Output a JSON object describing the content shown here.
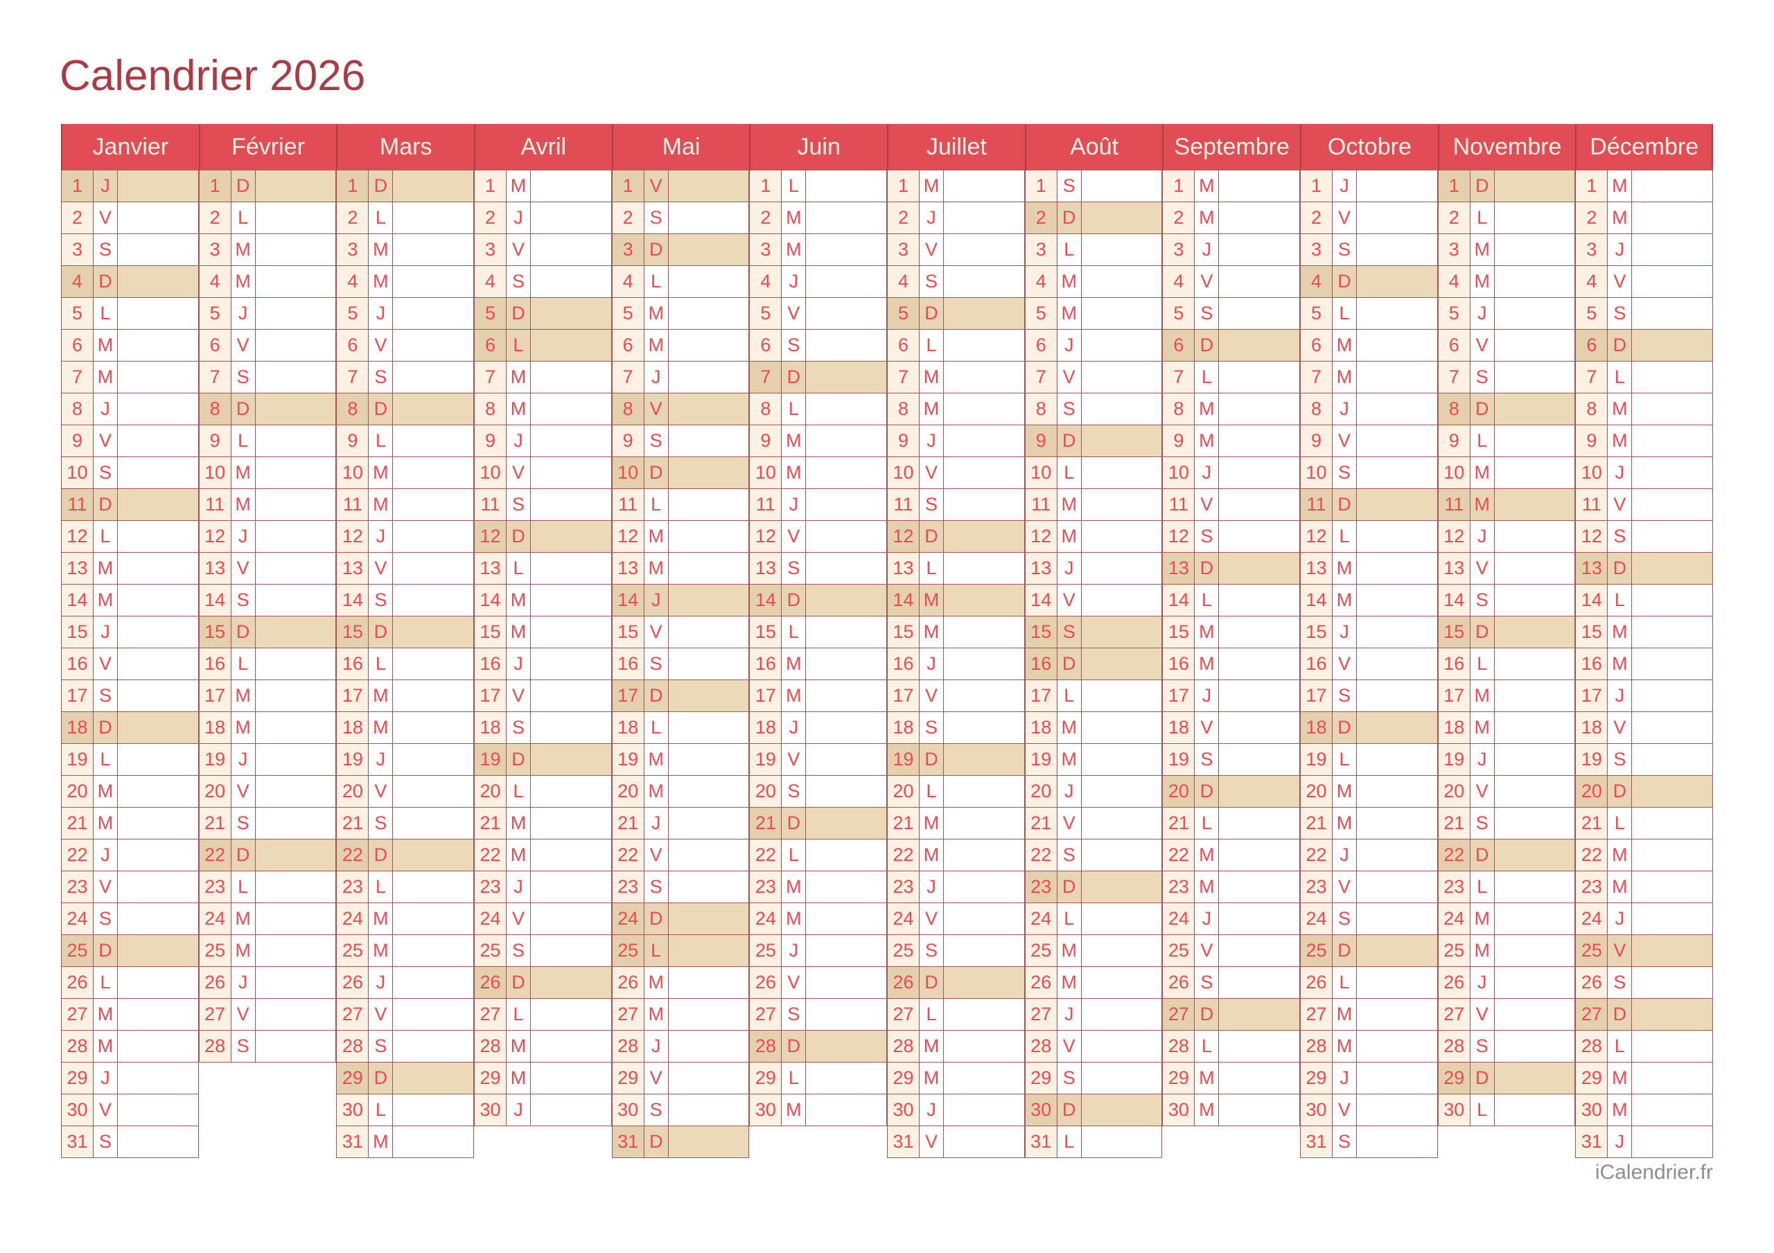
{
  "page": {
    "title": "Calendrier 2026",
    "footer": "iCalendrier.fr"
  },
  "colors": {
    "title_text": "#ab3a45",
    "header_bg": "#e24c55",
    "header_text": "#fdf3e9",
    "header_divider": "#b23a43",
    "day_text": "#ee4950",
    "cell_border": "#a15458",
    "number_cell_bg": "#fcf1e2",
    "cell_bg": "#ffffff",
    "holiday_number_bg": "#e5d0ae",
    "holiday_letter_bg": "#e8d5b5",
    "holiday_cell_bg": "#ebd9b8",
    "footer_text": "#8e8e8e"
  },
  "months": [
    {
      "name": "Janvier",
      "days": 31,
      "letters": "JVSDLMMJVSDLMMJVSDLMMJVSDLMMJVS",
      "highlighted": [
        1,
        4,
        11,
        18,
        25
      ]
    },
    {
      "name": "Février",
      "days": 28,
      "letters": "DLMMJVSDLMMJVSDLMMJVSDLMMJVS",
      "highlighted": [
        1,
        8,
        15,
        22
      ]
    },
    {
      "name": "Mars",
      "days": 31,
      "letters": "DLMMJVSDLMMJVSDLMMJVSDLMMJVSDLM",
      "highlighted": [
        1,
        8,
        15,
        22,
        29
      ]
    },
    {
      "name": "Avril",
      "days": 30,
      "letters": "MJVSDLMMJVSDLMMJVSDLMMJVSDLMMJ",
      "highlighted": [
        5,
        6,
        12,
        19,
        26
      ]
    },
    {
      "name": "Mai",
      "days": 31,
      "letters": "VSDLMMJVSDLMMJVSDLMMJVSDLMMJVSD",
      "highlighted": [
        1,
        3,
        8,
        10,
        14,
        17,
        24,
        25,
        31
      ]
    },
    {
      "name": "Juin",
      "days": 30,
      "letters": "LMMJVSDLMMJVSDLMMJVSDLMMJVSDLM",
      "highlighted": [
        7,
        14,
        21,
        28
      ]
    },
    {
      "name": "Juillet",
      "days": 31,
      "letters": "MJVSDLMMJVSDLMMJVSDLMMJVSDLMMJV",
      "highlighted": [
        5,
        12,
        14,
        19,
        26
      ]
    },
    {
      "name": "Août",
      "days": 31,
      "letters": "SDLMMJVSDLMMJVSDLMMJVSDLMMJVSDL",
      "highlighted": [
        2,
        9,
        15,
        16,
        23,
        30
      ]
    },
    {
      "name": "Septembre",
      "days": 30,
      "letters": "MMJVSDLMMJVSDLMMJVSDLMMJVSDLMM",
      "highlighted": [
        6,
        13,
        20,
        27
      ]
    },
    {
      "name": "Octobre",
      "days": 31,
      "letters": "JVSDLMMJVSDLMMJVSDLMMJVSDLMMJVS",
      "highlighted": [
        4,
        11,
        18,
        25
      ]
    },
    {
      "name": "Novembre",
      "days": 30,
      "letters": "DLMMJVSDLMMJVSDLMMJVSDLMMJVSDL",
      "highlighted": [
        1,
        8,
        11,
        15,
        22,
        29
      ]
    },
    {
      "name": "Décembre",
      "days": 31,
      "letters": "MMJVSDLMMJVSDLMMJVSDLMMJVSDLMMJ",
      "highlighted": [
        6,
        13,
        20,
        25,
        27
      ]
    }
  ]
}
